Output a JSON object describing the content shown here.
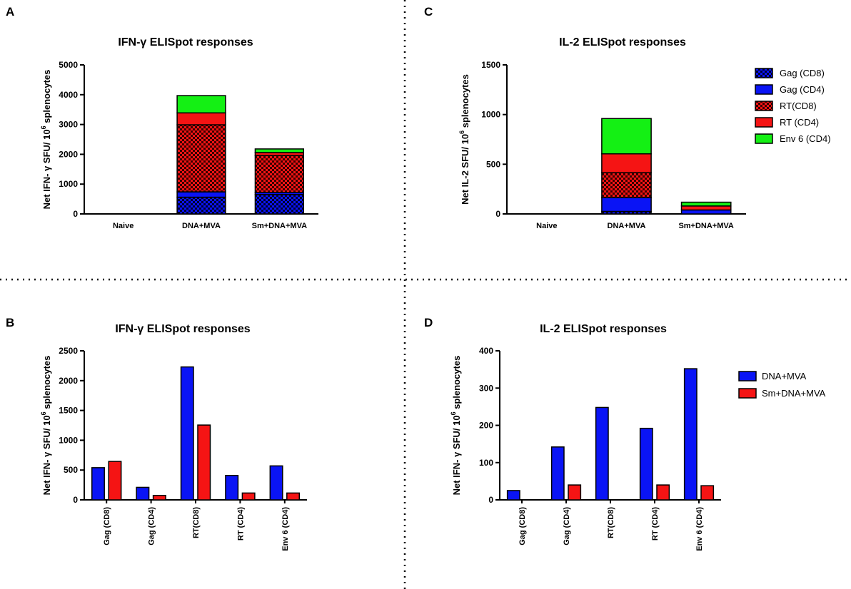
{
  "colors": {
    "blue": "#0a14f5",
    "red": "#f51414",
    "green": "#14f014",
    "divider": "#000000"
  },
  "legends": {
    "stacked": [
      {
        "label": "Gag (CD8)",
        "color": "#0a14f5",
        "pattern": true
      },
      {
        "label": "Gag (CD4)",
        "color": "#0a14f5",
        "pattern": false
      },
      {
        "label": "RT(CD8)",
        "color": "#f51414",
        "pattern": true
      },
      {
        "label": "RT (CD4)",
        "color": "#f51414",
        "pattern": false
      },
      {
        "label": "Env 6 (CD4)",
        "color": "#14f014",
        "pattern": false
      }
    ],
    "grouped": [
      {
        "label": "DNA+MVA",
        "color": "#0a14f5"
      },
      {
        "label": "Sm+DNA+MVA",
        "color": "#f51414"
      }
    ]
  },
  "chart_data": [
    {
      "panel": "A",
      "type": "bar",
      "stacked": true,
      "title": "IFN-γ ELISpot responses",
      "ylabel": "Net IFN- γ SFU/ 10^6 splenocytes",
      "ylim": [
        0,
        5000
      ],
      "yticks": [
        0,
        1000,
        2000,
        3000,
        4000,
        5000
      ],
      "categories": [
        "Naive",
        "DNA+MVA",
        "Sm+DNA+MVA"
      ],
      "series": [
        {
          "name": "Gag (CD8)",
          "values": [
            0,
            560,
            650
          ]
        },
        {
          "name": "Gag (CD4)",
          "values": [
            0,
            180,
            70
          ]
        },
        {
          "name": "RT(CD8)",
          "values": [
            0,
            2250,
            1240
          ]
        },
        {
          "name": "RT (CD4)",
          "values": [
            0,
            400,
            100
          ]
        },
        {
          "name": "Env 6 (CD4)",
          "values": [
            0,
            580,
            120
          ]
        }
      ]
    },
    {
      "panel": "C",
      "type": "bar",
      "stacked": true,
      "title": "IL-2 ELISpot responses",
      "ylabel": "Net IL-2 SFU/ 10^6 splenocytes",
      "ylim": [
        0,
        1500
      ],
      "yticks": [
        0,
        500,
        1000,
        1500
      ],
      "categories": [
        "Naive",
        "DNA+MVA",
        "Sm+DNA+MVA"
      ],
      "series": [
        {
          "name": "Gag (CD8)",
          "values": [
            0,
            25,
            0
          ]
        },
        {
          "name": "Gag (CD4)",
          "values": [
            0,
            140,
            40
          ]
        },
        {
          "name": "RT(CD8)",
          "values": [
            0,
            250,
            0
          ]
        },
        {
          "name": "RT (CD4)",
          "values": [
            0,
            190,
            40
          ]
        },
        {
          "name": "Env 6 (CD4)",
          "values": [
            0,
            355,
            38
          ]
        }
      ]
    },
    {
      "panel": "B",
      "type": "bar",
      "stacked": false,
      "title": "IFN-γ ELISpot responses",
      "ylabel": "Net IFN- γ SFU/ 10^6 splenocytes",
      "ylim": [
        0,
        2500
      ],
      "yticks": [
        0,
        500,
        1000,
        1500,
        2000,
        2500
      ],
      "categories": [
        "Gag (CD8)",
        "Gag (CD4)",
        "RT(CD8)",
        "RT (CD4)",
        "Env 6 (CD4)"
      ],
      "series": [
        {
          "name": "DNA+MVA",
          "values": [
            540,
            210,
            2230,
            410,
            570
          ]
        },
        {
          "name": "Sm+DNA+MVA",
          "values": [
            645,
            75,
            1255,
            115,
            115
          ]
        }
      ]
    },
    {
      "panel": "D",
      "type": "bar",
      "stacked": false,
      "title": "IL-2 ELISpot responses",
      "ylabel": "Net IFN- γ SFU/ 10^6 splenocytes",
      "ylim": [
        0,
        400
      ],
      "yticks": [
        0,
        100,
        200,
        300,
        400
      ],
      "categories": [
        "Gag (CD8)",
        "Gag (CD4)",
        "RT(CD8)",
        "RT (CD4)",
        "Env 6 (CD4)"
      ],
      "series": [
        {
          "name": "DNA+MVA",
          "values": [
            25,
            142,
            248,
            192,
            352
          ]
        },
        {
          "name": "Sm+DNA+MVA",
          "values": [
            0,
            40,
            0,
            40,
            38
          ]
        }
      ]
    }
  ]
}
